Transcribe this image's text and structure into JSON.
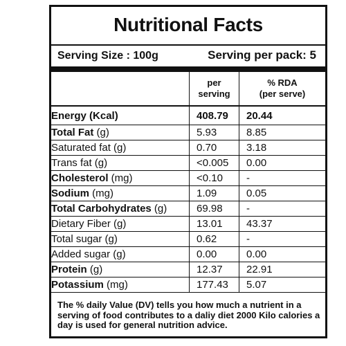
{
  "title": "Nutritional Facts",
  "serving_size": "Serving Size : 100g",
  "serving_per_pack": "Serving per pack: 5",
  "headers": {
    "per_serving_line1": "per",
    "per_serving_line2": "serving",
    "rda_line1": "% RDA",
    "rda_line2": "(per serve)"
  },
  "energy": {
    "label": "Energy (Kcal)",
    "per_serving": "408.79",
    "rda": "20.44"
  },
  "rows": [
    {
      "name": "Total Fat",
      "unit": " (g)",
      "per_serving": "5.93",
      "rda": "8.85"
    },
    {
      "name": "Saturated fat (g)",
      "unit": "",
      "per_serving": "0.70",
      "rda": "3.18"
    },
    {
      "name": "Trans fat (g)",
      "unit": "",
      "per_serving": "<0.005",
      "rda": "0.00"
    },
    {
      "name": "Cholesterol",
      "unit": " (mg)",
      "per_serving": "<0.10",
      "rda": "-"
    },
    {
      "name": "Sodium",
      "unit": " (mg)",
      "per_serving": "1.09",
      "rda": "0.05"
    },
    {
      "name": "Total Carbohydrates",
      "unit": " (g)",
      "per_serving": "69.98",
      "rda": "-"
    },
    {
      "name": "Dietary Fiber (g)",
      "unit": "",
      "per_serving": "13.01",
      "rda": "43.37"
    },
    {
      "name": "Total sugar (g)",
      "unit": "",
      "per_serving": "0.62",
      "rda": "-"
    },
    {
      "name": "Added sugar (g)",
      "unit": "",
      "per_serving": "0.00",
      "rda": "0.00"
    },
    {
      "name": "Protein",
      "unit": " (g)",
      "per_serving": "12.37",
      "rda": "22.91"
    },
    {
      "name": "Potassium",
      "unit": " (mg)",
      "per_serving": "177.43",
      "rda": "5.07"
    }
  ],
  "footnote": "The % daily Value (DV) tells you how much a nutrient in a serving of food contributes to a daliy diet 2000 Kilo calories a day is used for general nutrition advice."
}
